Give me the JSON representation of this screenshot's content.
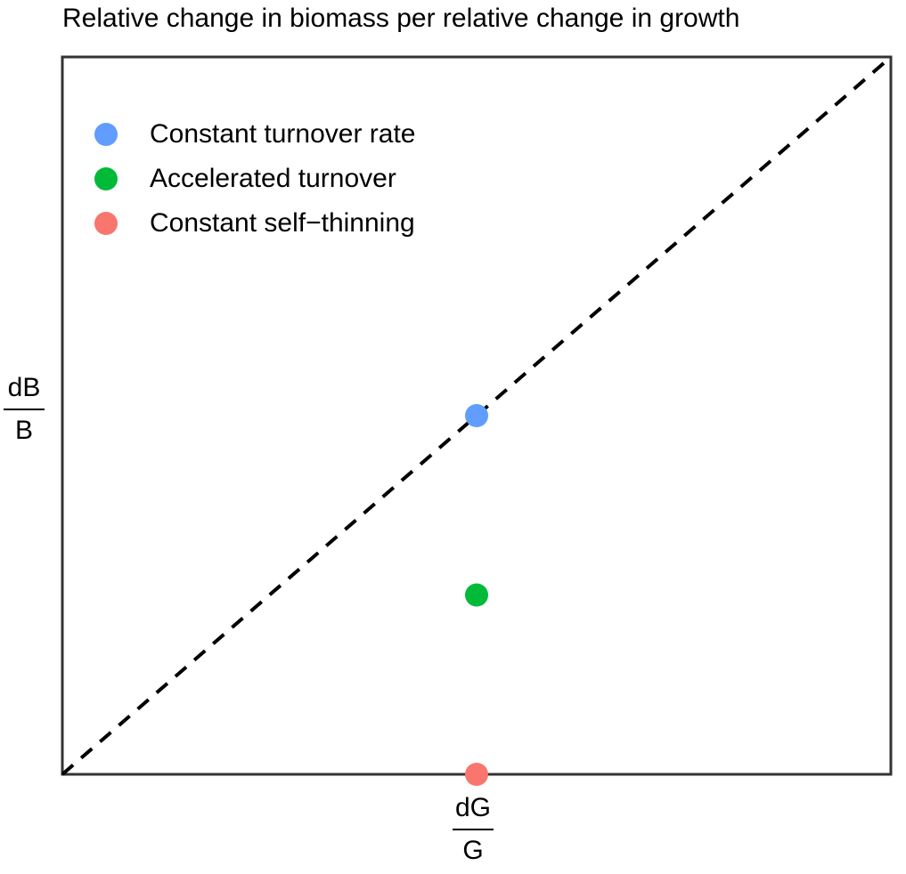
{
  "chart_data": {
    "type": "scatter",
    "title": "Relative change in biomass per relative change in growth",
    "xlabel": {
      "numerator": "dG",
      "denominator": "G"
    },
    "ylabel": {
      "numerator": "dB",
      "denominator": "B"
    },
    "xlim": [
      0,
      1
    ],
    "ylim": [
      0,
      1
    ],
    "grid": false,
    "axis_ticks": false,
    "reference_line": {
      "style": "dashed",
      "x": [
        0,
        1
      ],
      "y": [
        0,
        1
      ],
      "color": "#000000"
    },
    "legend_position": "top-left",
    "series": [
      {
        "name": "Constant turnover rate",
        "color": "#619CFF",
        "points": [
          {
            "x": 0.5,
            "y": 0.5
          }
        ]
      },
      {
        "name": "Accelerated turnover",
        "color": "#00BA38",
        "points": [
          {
            "x": 0.5,
            "y": 0.25
          }
        ]
      },
      {
        "name": "Constant self−thinning",
        "color": "#F8766D",
        "points": [
          {
            "x": 0.5,
            "y": 0.0
          }
        ]
      }
    ]
  }
}
